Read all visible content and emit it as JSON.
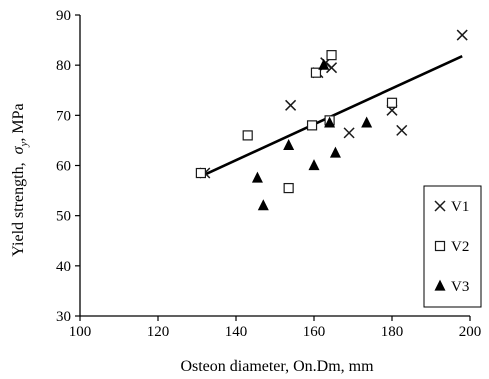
{
  "chart_data": {
    "type": "scatter",
    "xlabel": "Osteon diameter, On.Dm, mm",
    "ylabel_prefix": "Yield strength,",
    "ylabel_symbol": "σ",
    "ylabel_subscript": "y",
    "ylabel_suffix": ", MPa",
    "xlim": [
      100,
      200
    ],
    "ylim": [
      30,
      90
    ],
    "x_ticks": [
      "100",
      "120",
      "140",
      "160",
      "180",
      "200"
    ],
    "y_ticks": [
      "30",
      "40",
      "50",
      "60",
      "70",
      "80",
      "90"
    ],
    "grid": false,
    "legend_position": "right",
    "series": [
      {
        "name": "V1",
        "marker": "x",
        "color": "#1a1a1a",
        "points": [
          [
            132,
            58.5
          ],
          [
            154,
            72
          ],
          [
            161,
            78.5
          ],
          [
            163,
            80.5
          ],
          [
            164.5,
            79.5
          ],
          [
            169,
            66.5
          ],
          [
            180,
            71
          ],
          [
            182.5,
            67
          ],
          [
            198,
            86
          ]
        ]
      },
      {
        "name": "V2",
        "marker": "square",
        "color": "#1a1a1a",
        "points": [
          [
            131,
            58.5
          ],
          [
            143,
            66
          ],
          [
            153.5,
            55.5
          ],
          [
            159.5,
            68
          ],
          [
            160.5,
            78.5
          ],
          [
            164,
            69
          ],
          [
            164.5,
            82
          ],
          [
            180,
            72.5
          ]
        ]
      },
      {
        "name": "V3",
        "marker": "triangle",
        "color": "#000000",
        "points": [
          [
            145.5,
            57.5
          ],
          [
            147,
            52
          ],
          [
            153.5,
            64
          ],
          [
            160,
            60
          ],
          [
            162.5,
            80
          ],
          [
            164,
            68.5
          ],
          [
            165.5,
            62.5
          ],
          [
            173.5,
            68.5
          ]
        ]
      }
    ],
    "trendline": {
      "x": [
        132,
        198
      ],
      "y": [
        58.2,
        81.8
      ]
    }
  }
}
